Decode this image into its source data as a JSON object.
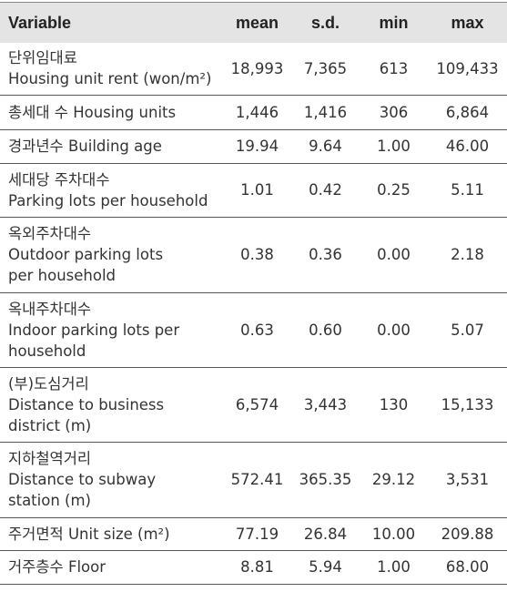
{
  "table": {
    "header": [
      "Variable",
      "mean",
      "s.d.",
      "min",
      "max"
    ],
    "rows": [
      {
        "variable": [
          "단위임대료",
          "Housing unit rent (won/m²)"
        ],
        "cells": [
          "18,993",
          "7,365",
          "613",
          "109,433"
        ]
      },
      {
        "variable": [
          "총세대 수 Housing units"
        ],
        "cells": [
          "1,446",
          "1,416",
          "306",
          "6,864"
        ]
      },
      {
        "variable": [
          "경과년수 Building age"
        ],
        "cells": [
          "19.94",
          "9.64",
          "1.00",
          "46.00"
        ]
      },
      {
        "variable": [
          "세대당 주차대수",
          "Parking lots per household"
        ],
        "cells": [
          "1.01",
          "0.42",
          "0.25",
          "5.11"
        ]
      },
      {
        "variable": [
          "옥외주차대수",
          "Outdoor parking lots",
          "per household"
        ],
        "cells": [
          "0.38",
          "0.36",
          "0.00",
          "2.18"
        ]
      },
      {
        "variable": [
          "옥내주차대수",
          "Indoor parking lots per",
          "household"
        ],
        "cells": [
          "0.63",
          "0.60",
          "0.00",
          "5.07"
        ]
      },
      {
        "variable": [
          "(부)도심거리",
          "Distance to business",
          "district (m)"
        ],
        "cells": [
          "6,574",
          "3,443",
          "130",
          "15,133"
        ]
      },
      {
        "variable": [
          "지하철역거리",
          "Distance to subway",
          "station (m)"
        ],
        "cells": [
          "572.41",
          "365.35",
          "29.12",
          "3,531"
        ]
      },
      {
        "variable": [
          "주거면적 Unit size (m²)"
        ],
        "cells": [
          "77.19",
          "26.84",
          "10.00",
          "209.88"
        ]
      },
      {
        "variable": [
          "거주층수 Floor"
        ],
        "cells": [
          "8.81",
          "5.94",
          "1.00",
          "68.00"
        ]
      }
    ]
  }
}
